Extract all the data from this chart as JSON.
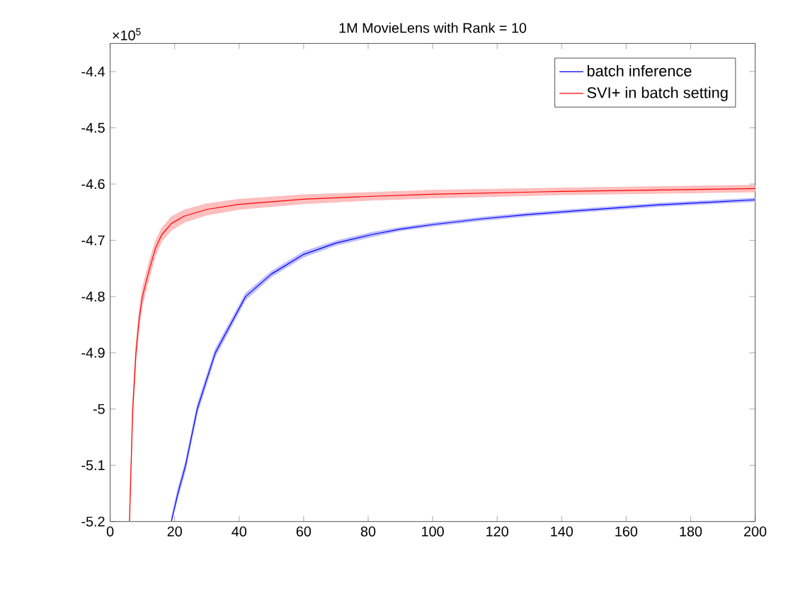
{
  "chart_data": {
    "type": "line",
    "title": "1M MovieLens with Rank = 10",
    "x": [
      6,
      7,
      8,
      9,
      10,
      12,
      14,
      16,
      19,
      23,
      30,
      40,
      60,
      80,
      100,
      140,
      200
    ],
    "series": [
      {
        "name": "batch inference",
        "color": "#0000ff",
        "x": [
          19,
          21,
          23.4,
          27,
          32.6,
          42,
          50,
          60,
          70,
          81,
          90,
          100,
          115,
          130,
          143.5,
          170,
          200
        ],
        "values": [
          -5.2,
          -5.15,
          -5.1,
          -5.0,
          -4.9,
          -4.8,
          -4.76,
          -4.725,
          -4.705,
          -4.69,
          -4.68,
          -4.672,
          -4.662,
          -4.654,
          -4.648,
          -4.637,
          -4.628
        ],
        "lower": [
          -5.2,
          -5.158,
          -5.108,
          -5.008,
          -4.907,
          -4.806,
          -4.765,
          -4.73,
          -4.709,
          -4.694,
          -4.683,
          -4.675,
          -4.665,
          -4.657,
          -4.651,
          -4.64,
          -4.631
        ],
        "upper": [
          -5.192,
          -5.142,
          -5.092,
          -4.992,
          -4.893,
          -4.794,
          -4.755,
          -4.72,
          -4.701,
          -4.686,
          -4.677,
          -4.669,
          -4.659,
          -4.651,
          -4.645,
          -4.634,
          -4.625
        ]
      },
      {
        "name": "SVI+ in batch setting",
        "color": "#ff0000",
        "values": [
          -5.2,
          -5.0,
          -4.9,
          -4.84,
          -4.8,
          -4.755,
          -4.715,
          -4.69,
          -4.67,
          -4.657,
          -4.645,
          -4.636,
          -4.627,
          -4.622,
          -4.618,
          -4.613,
          -4.608
        ],
        "lower": [
          -5.2,
          -5.015,
          -4.915,
          -4.855,
          -4.815,
          -4.77,
          -4.728,
          -4.702,
          -4.682,
          -4.668,
          -4.655,
          -4.645,
          -4.635,
          -4.629,
          -4.625,
          -4.619,
          -4.614
        ],
        "upper": [
          -5.19,
          -4.985,
          -4.885,
          -4.825,
          -4.785,
          -4.74,
          -4.702,
          -4.678,
          -4.658,
          -4.646,
          -4.635,
          -4.627,
          -4.619,
          -4.615,
          -4.611,
          -4.607,
          -4.602
        ]
      }
    ],
    "xlim": [
      0,
      200
    ],
    "xticks": [
      0,
      20,
      40,
      60,
      80,
      100,
      120,
      140,
      160,
      180,
      200
    ],
    "ylim": [
      -5.2,
      -4.35
    ],
    "yticks": [
      -5.2,
      -5.1,
      -5,
      -4.9,
      -4.8,
      -4.7,
      -4.6,
      -4.5,
      -4.4
    ],
    "annotations": [
      "×10$^{5}$"
    ],
    "legend": "top right",
    "grid": false,
    "marker": "none",
    "line_style": "solid"
  }
}
